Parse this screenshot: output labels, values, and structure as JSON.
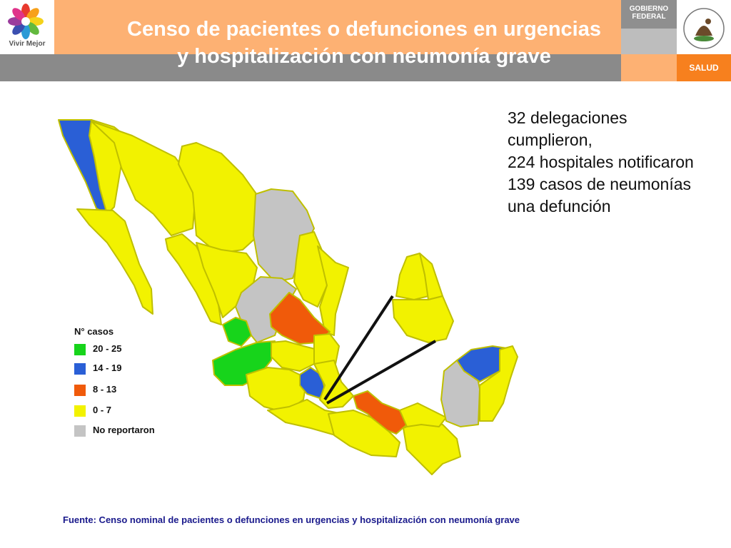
{
  "header": {
    "brand_label": "Vivir Mejor",
    "title_line1": "Censo de pacientes o defunciones en urgencias",
    "title_line2": "y hospitalización con neumonía grave",
    "gov_line1": "GOBIERNO",
    "gov_line2": "FEDERAL",
    "salud_label": "SALUD",
    "colors": {
      "orange_bar": "#fdb173",
      "gray_bar": "#8a8a8a",
      "salud": "#f7801e"
    }
  },
  "info": {
    "lines": [
      "32 delegaciones",
      "cumplieron,",
      "224 hospitales notificaron",
      "139 casos de neumonías",
      "una defunción"
    ]
  },
  "legend": {
    "title": "N° casos",
    "items": [
      {
        "label": "20 - 25",
        "color": "#17d41b"
      },
      {
        "label": "14 - 19",
        "color": "#2a5fd6"
      },
      {
        "label": "8 - 13",
        "color": "#f05a0a"
      },
      {
        "label": "0 - 7",
        "color": "#f2f200"
      },
      {
        "label": "No reportaron",
        "color": "#c4c4c4"
      }
    ]
  },
  "map": {
    "category_colors": {
      "green": "#17d41b",
      "blue": "#2a5fd6",
      "orange": "#f05a0a",
      "yellow": "#f2f200",
      "gray": "#c4c4c4"
    },
    "regions": [
      {
        "name": "baja-california-norte-east",
        "category": "yellow"
      },
      {
        "name": "baja-california-norte-west",
        "category": "blue"
      },
      {
        "name": "baja-california-sur",
        "category": "yellow"
      },
      {
        "name": "sonora",
        "category": "yellow"
      },
      {
        "name": "chihuahua",
        "category": "yellow"
      },
      {
        "name": "coahuila",
        "category": "gray"
      },
      {
        "name": "nuevo-leon",
        "category": "yellow"
      },
      {
        "name": "tamaulipas",
        "category": "yellow"
      },
      {
        "name": "sinaloa",
        "category": "yellow"
      },
      {
        "name": "durango",
        "category": "yellow"
      },
      {
        "name": "zacatecas",
        "category": "gray"
      },
      {
        "name": "san-luis-potosi",
        "category": "orange"
      },
      {
        "name": "nayarit",
        "category": "green"
      },
      {
        "name": "jalisco",
        "category": "green"
      },
      {
        "name": "aguascalientes-guanajuato",
        "category": "yellow"
      },
      {
        "name": "queretaro-hidalgo",
        "category": "yellow"
      },
      {
        "name": "michoacan",
        "category": "yellow"
      },
      {
        "name": "mexico-state",
        "category": "blue"
      },
      {
        "name": "morelos-puebla",
        "category": "yellow"
      },
      {
        "name": "guerrero",
        "category": "yellow"
      },
      {
        "name": "oaxaca-north",
        "category": "orange"
      },
      {
        "name": "oaxaca",
        "category": "yellow"
      },
      {
        "name": "chiapas",
        "category": "yellow"
      },
      {
        "name": "tabasco",
        "category": "yellow"
      },
      {
        "name": "campeche",
        "category": "gray"
      },
      {
        "name": "yucatan",
        "category": "blue"
      },
      {
        "name": "quintana-roo",
        "category": "yellow"
      },
      {
        "name": "df-inset-1",
        "category": "yellow"
      },
      {
        "name": "df-inset-2",
        "category": "yellow"
      },
      {
        "name": "df-inset-3",
        "category": "yellow"
      }
    ]
  },
  "source": {
    "text": "Fuente: Censo nominal de pacientes o defunciones en urgencias y hospitalización con neumonía grave"
  }
}
